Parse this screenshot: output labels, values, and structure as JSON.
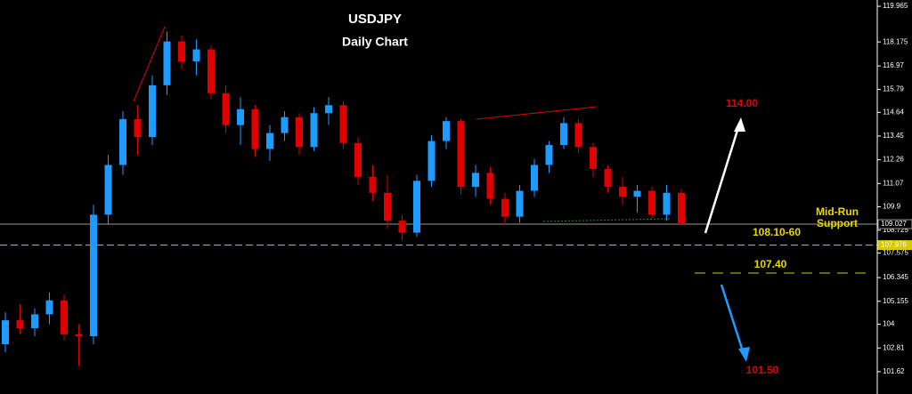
{
  "chart_data": {
    "type": "candlestick",
    "title": "USDJPY",
    "subtitle": "Daily Chart",
    "up_color": "#1e9bff",
    "down_color": "#e00000",
    "ylim": [
      100.5,
      120.28
    ],
    "yticks": [
      119.965,
      118.175,
      116.97,
      115.79,
      114.64,
      113.45,
      112.26,
      111.07,
      109.9,
      108.725,
      107.575,
      106.345,
      105.155,
      104.0,
      102.81,
      101.62
    ],
    "open": [
      103.0,
      104.2,
      103.8,
      104.5,
      105.2,
      103.5,
      103.4,
      109.5,
      112.0,
      114.3,
      113.4,
      116.0,
      118.2,
      117.2,
      117.8,
      115.6,
      114.0,
      114.8,
      112.8,
      113.6,
      114.4,
      112.9,
      114.6,
      115.0,
      113.1,
      111.4,
      110.6,
      109.2,
      108.6,
      111.2,
      113.2,
      114.2,
      110.9,
      111.6,
      110.3,
      109.4,
      110.7,
      112.0,
      113.0,
      114.1,
      112.9,
      111.8,
      110.9,
      110.4,
      110.7,
      109.5,
      110.6
    ],
    "high": [
      104.6,
      105.0,
      104.8,
      105.6,
      105.5,
      104.0,
      110.0,
      112.5,
      114.7,
      115.0,
      116.5,
      118.7,
      118.5,
      118.3,
      118.0,
      116.0,
      115.4,
      115.0,
      114.0,
      114.7,
      114.6,
      114.9,
      115.4,
      115.2,
      113.4,
      112.0,
      111.5,
      109.5,
      111.5,
      113.5,
      114.4,
      114.3,
      112.0,
      111.9,
      110.6,
      111.0,
      112.3,
      113.2,
      114.4,
      114.3,
      113.1,
      112.0,
      111.4,
      111.0,
      110.9,
      111.0,
      110.8
    ],
    "low": [
      102.6,
      103.5,
      103.4,
      104.0,
      103.2,
      101.9,
      103.0,
      109.0,
      111.5,
      112.5,
      113.0,
      115.5,
      116.8,
      116.5,
      115.3,
      113.6,
      113.0,
      112.4,
      112.2,
      113.2,
      112.5,
      112.7,
      114.0,
      112.8,
      111.0,
      110.2,
      108.8,
      108.2,
      108.4,
      110.9,
      112.8,
      110.5,
      110.4,
      110.0,
      109.0,
      109.1,
      110.4,
      111.6,
      112.8,
      112.6,
      111.4,
      110.6,
      110.0,
      109.6,
      109.3,
      109.2,
      109.0
    ],
    "close": [
      104.2,
      103.8,
      104.5,
      105.2,
      103.5,
      103.4,
      109.5,
      112.0,
      114.3,
      113.4,
      116.0,
      118.2,
      117.2,
      117.8,
      115.6,
      114.0,
      114.8,
      112.8,
      113.6,
      114.4,
      112.9,
      114.6,
      115.0,
      113.1,
      111.4,
      110.6,
      109.2,
      108.6,
      111.2,
      113.2,
      114.2,
      110.9,
      111.6,
      110.3,
      109.4,
      110.7,
      112.0,
      113.0,
      114.1,
      112.9,
      111.8,
      110.9,
      110.4,
      110.7,
      109.5,
      110.6,
      109.027
    ],
    "levels": [
      {
        "value": 109.027,
        "label": "109.027",
        "color": "#9a9a9a"
      },
      {
        "value": 107.976,
        "label": "107.976",
        "color": "#d8c800"
      }
    ],
    "annotations": [
      "114.00",
      "Mid-Run",
      "Support",
      "108.10-60",
      "107.40",
      "101.50"
    ]
  }
}
